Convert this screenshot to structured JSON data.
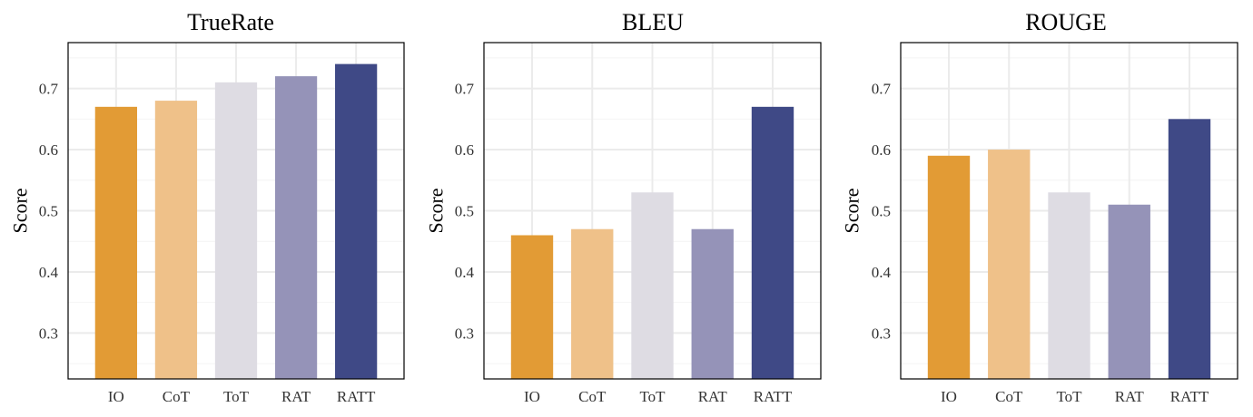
{
  "chart_data": [
    {
      "type": "bar",
      "title": "TrueRate",
      "xlabel": "",
      "ylabel": "Score",
      "categories": [
        "IO",
        "CoT",
        "ToT",
        "RAT",
        "RATT"
      ],
      "values": [
        0.67,
        0.68,
        0.71,
        0.72,
        0.74
      ],
      "ylim": [
        0.225,
        0.775
      ],
      "yticks": [
        0.3,
        0.4,
        0.5,
        0.6,
        0.7
      ],
      "ytick_labels": [
        "0.3",
        "0.4",
        "0.5",
        "0.6",
        "0.7"
      ],
      "grid": true
    },
    {
      "type": "bar",
      "title": "BLEU",
      "xlabel": "",
      "ylabel": "Score",
      "categories": [
        "IO",
        "CoT",
        "ToT",
        "RAT",
        "RATT"
      ],
      "values": [
        0.46,
        0.47,
        0.53,
        0.47,
        0.67
      ],
      "ylim": [
        0.225,
        0.775
      ],
      "yticks": [
        0.3,
        0.4,
        0.5,
        0.6,
        0.7
      ],
      "ytick_labels": [
        "0.3",
        "0.4",
        "0.5",
        "0.6",
        "0.7"
      ],
      "grid": true
    },
    {
      "type": "bar",
      "title": "ROUGE",
      "xlabel": "",
      "ylabel": "Score",
      "categories": [
        "IO",
        "CoT",
        "ToT",
        "RAT",
        "RATT"
      ],
      "values": [
        0.59,
        0.6,
        0.53,
        0.51,
        0.65
      ],
      "ylim": [
        0.225,
        0.775
      ],
      "yticks": [
        0.3,
        0.4,
        0.5,
        0.6,
        0.7
      ],
      "ytick_labels": [
        "0.3",
        "0.4",
        "0.5",
        "0.6",
        "0.7"
      ],
      "grid": true
    }
  ],
  "colors": {
    "categories": [
      "#E29B35",
      "#EFC189",
      "#DEDCE3",
      "#9593B8",
      "#3F4986"
    ],
    "grid_major": "#EBEBEB",
    "grid_minor": "#F4F4F4",
    "frame": "#000000"
  }
}
